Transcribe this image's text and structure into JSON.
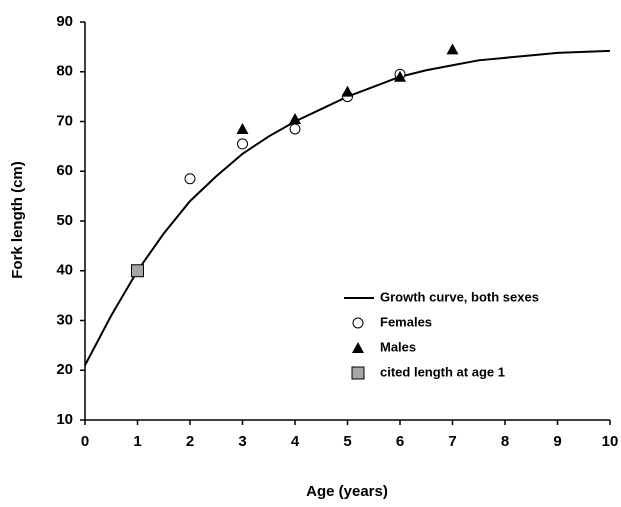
{
  "chart_data": {
    "type": "line",
    "x_label": "Age (years)",
    "y_label": "Fork length (cm)",
    "xlim": [
      0,
      10
    ],
    "ylim": [
      10,
      90
    ],
    "xticks": [
      0,
      1,
      2,
      3,
      4,
      5,
      6,
      7,
      8,
      9,
      10
    ],
    "yticks": [
      10,
      20,
      30,
      40,
      50,
      60,
      70,
      80,
      90
    ],
    "grid": false,
    "legend": "lower right",
    "series": [
      {
        "name": "Growth curve, both sexes",
        "marker": "line",
        "color": "#000000",
        "x": [
          0,
          0.5,
          1,
          1.5,
          2,
          2.5,
          3,
          3.5,
          4,
          4.5,
          5,
          5.5,
          6,
          6.5,
          7,
          7.5,
          8,
          8.5,
          9,
          9.5,
          10
        ],
        "values": [
          21,
          31,
          40,
          47.5,
          54,
          59,
          63.5,
          67,
          70,
          72.5,
          75,
          77,
          79,
          80.3,
          81.3,
          82.3,
          82.8,
          83.3,
          83.8,
          84,
          84.2
        ]
      },
      {
        "name": "Females",
        "marker": "circle",
        "color": "#ffffff",
        "x": [
          2,
          3,
          4,
          5,
          6
        ],
        "values": [
          58.5,
          65.5,
          68.5,
          75,
          79.5
        ]
      },
      {
        "name": "Males",
        "marker": "triangle",
        "color": "#000000",
        "x": [
          3,
          4,
          5,
          6,
          7
        ],
        "values": [
          68.5,
          70.5,
          76,
          79,
          84.5
        ]
      },
      {
        "name": "cited length at age 1",
        "marker": "square",
        "color": "#a6a6a6",
        "x": [
          1
        ],
        "values": [
          40
        ]
      }
    ]
  }
}
